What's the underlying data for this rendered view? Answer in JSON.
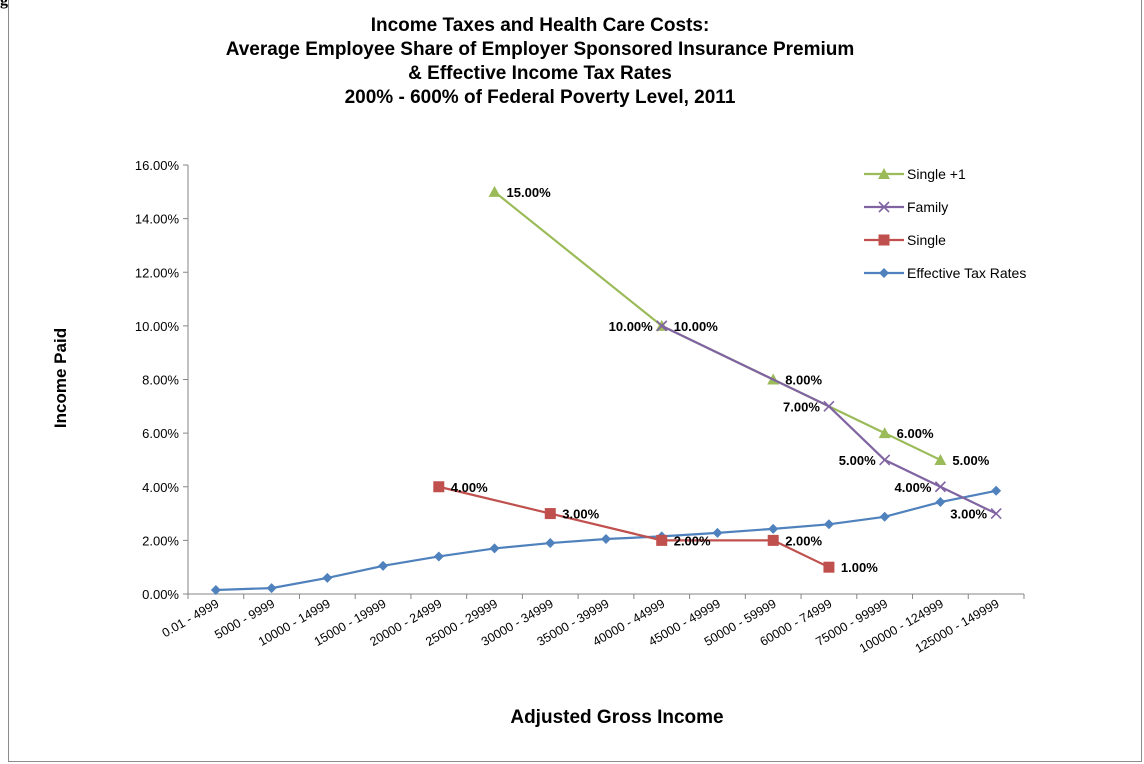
{
  "corner_label": "g",
  "chart_data": {
    "type": "line",
    "title": [
      "Income Taxes and Health Care Costs:",
      "Average Employee Share of Employer Sponsored Insurance Premium",
      "& Effective Income Tax Rates",
      "200% - 600% of Federal Poverty Level, 2011"
    ],
    "xlabel": "Adjusted Gross Income",
    "ylabel": "Income Paid",
    "ylim": [
      0,
      0.16
    ],
    "yticks": [
      "0.00%",
      "2.00%",
      "4.00%",
      "6.00%",
      "8.00%",
      "10.00%",
      "12.00%",
      "14.00%",
      "16.00%"
    ],
    "categories": [
      "0.01 - 4999",
      "5000 - 9999",
      "10000 - 14999",
      "15000 - 19999",
      "20000 - 24999",
      "25000 - 29999",
      "30000 - 34999",
      "35000 - 39999",
      "40000 - 44999",
      "45000 - 49999",
      "50000 - 59999",
      "60000 - 74999",
      "75000 - 99999",
      "100000 - 124999",
      "125000 - 149999"
    ],
    "grid": false,
    "legend_position": "top-right",
    "series": [
      {
        "name": "Single +1",
        "color": "#9bbb59",
        "marker": "triangle",
        "points": [
          {
            "x": 5.5,
            "y": 0.15,
            "label": "15.00%",
            "label_side": "right"
          },
          {
            "x": 8.5,
            "y": 0.1,
            "label": "10.00%",
            "label_side": "left"
          },
          {
            "x": 10.5,
            "y": 0.08,
            "label": "8.00%",
            "label_side": "right"
          },
          {
            "x": 12.5,
            "y": 0.06,
            "label": "6.00%",
            "label_side": "right"
          },
          {
            "x": 13.5,
            "y": 0.05,
            "label": "5.00%",
            "label_side": "right"
          }
        ]
      },
      {
        "name": "Family",
        "color": "#8064a2",
        "marker": "x",
        "points": [
          {
            "x": 8.5,
            "y": 0.1,
            "label": "10.00%",
            "label_side": "right"
          },
          {
            "x": 11.5,
            "y": 0.07,
            "label": "7.00%",
            "label_side": "left"
          },
          {
            "x": 12.5,
            "y": 0.05,
            "label": "5.00%",
            "label_side": "left"
          },
          {
            "x": 13.5,
            "y": 0.04,
            "label": "4.00%",
            "label_side": "left"
          },
          {
            "x": 14.5,
            "y": 0.03,
            "label": "3.00%",
            "label_side": "left"
          }
        ]
      },
      {
        "name": "Single",
        "color": "#c0504d",
        "marker": "square",
        "points": [
          {
            "x": 4.5,
            "y": 0.04,
            "label": "4.00%",
            "label_side": "right"
          },
          {
            "x": 6.5,
            "y": 0.03,
            "label": "3.00%",
            "label_side": "right"
          },
          {
            "x": 8.5,
            "y": 0.02,
            "label": "2.00%",
            "label_side": "right"
          },
          {
            "x": 10.5,
            "y": 0.02,
            "label": "2.00%",
            "label_side": "right"
          },
          {
            "x": 11.5,
            "y": 0.01,
            "label": "1.00%",
            "label_side": "right"
          }
        ]
      },
      {
        "name": "Effective Tax Rates",
        "color": "#4f81bd",
        "marker": "diamond",
        "points": [
          {
            "x": 0.5,
            "y": 0.0015
          },
          {
            "x": 1.5,
            "y": 0.0022
          },
          {
            "x": 2.5,
            "y": 0.006
          },
          {
            "x": 3.5,
            "y": 0.0105
          },
          {
            "x": 4.5,
            "y": 0.014
          },
          {
            "x": 5.5,
            "y": 0.017
          },
          {
            "x": 6.5,
            "y": 0.019
          },
          {
            "x": 7.5,
            "y": 0.0205
          },
          {
            "x": 8.5,
            "y": 0.0215
          },
          {
            "x": 9.5,
            "y": 0.0228
          },
          {
            "x": 10.5,
            "y": 0.0243
          },
          {
            "x": 11.5,
            "y": 0.026
          },
          {
            "x": 12.5,
            "y": 0.0288
          },
          {
            "x": 13.5,
            "y": 0.0343
          },
          {
            "x": 14.5,
            "y": 0.0385
          }
        ]
      }
    ]
  }
}
